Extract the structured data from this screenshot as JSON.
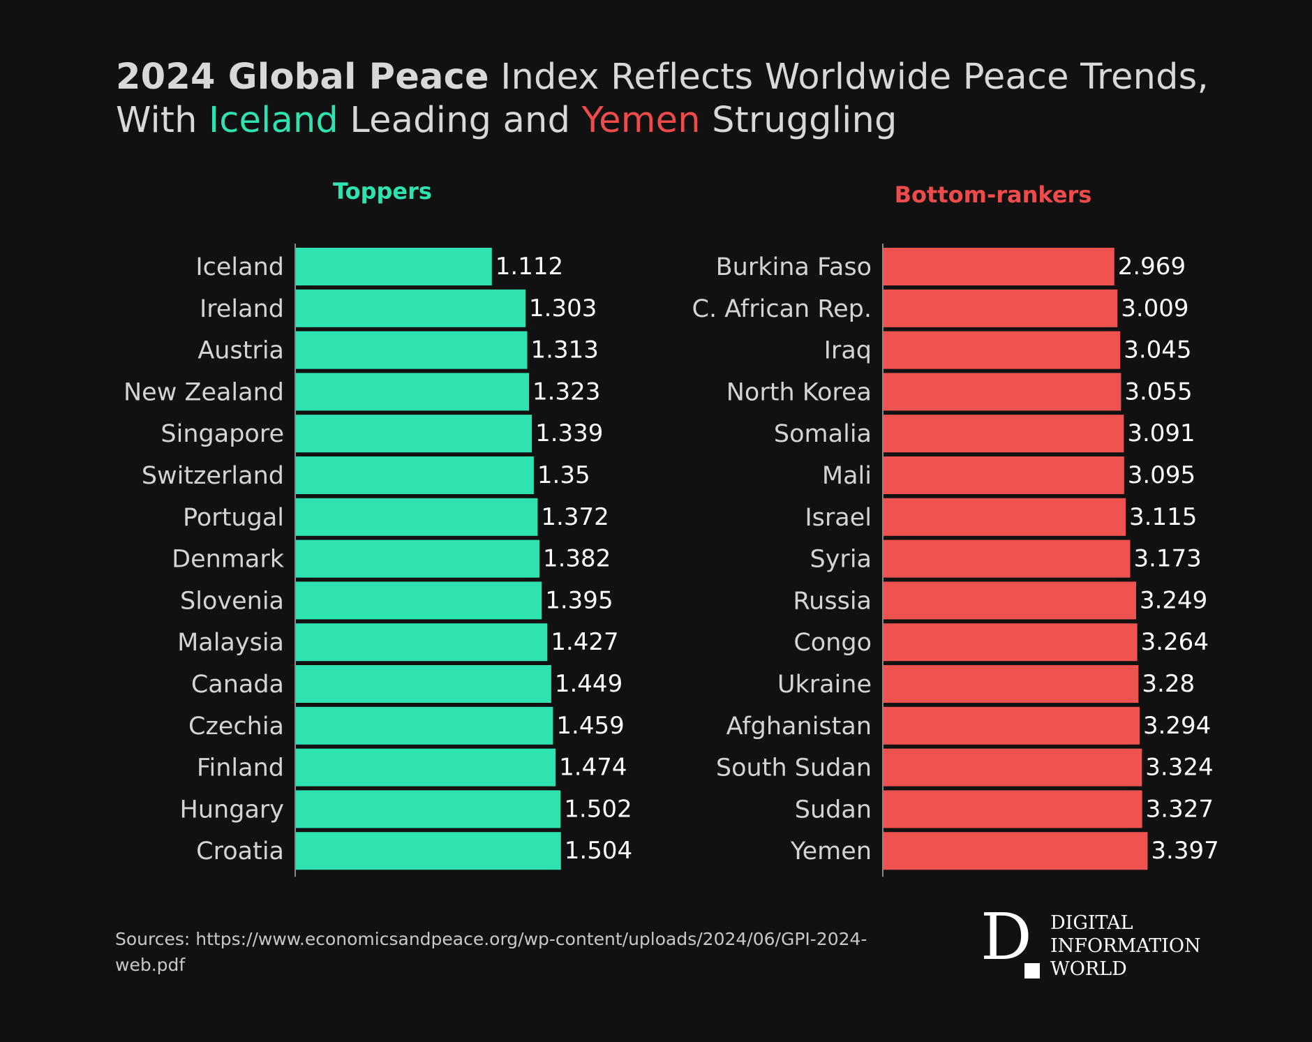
{
  "title": {
    "part1_bold": "2024 Global Peace",
    "part2": " Index Reflects Worldwide Peace Trends, With ",
    "highlight_top": "Iceland",
    "part3": " Leading and ",
    "highlight_bottom": "Yemen",
    "part4": " Struggling"
  },
  "colors": {
    "top_bar": "#2ee3b0",
    "bottom_bar": "#ef5350",
    "top_header": "#2ee3b0",
    "bottom_header": "#ef4b4b"
  },
  "chart_data": [
    {
      "type": "bar",
      "orientation": "horizontal",
      "title": "Toppers",
      "categories": [
        "Iceland",
        "Ireland",
        "Austria",
        "New Zealand",
        "Singapore",
        "Switzerland",
        "Portugal",
        "Denmark",
        "Slovenia",
        "Malaysia",
        "Canada",
        "Czechia",
        "Finland",
        "Hungary",
        "Croatia"
      ],
      "values": [
        1.112,
        1.303,
        1.313,
        1.323,
        1.339,
        1.35,
        1.372,
        1.382,
        1.395,
        1.427,
        1.449,
        1.459,
        1.474,
        1.502,
        1.504
      ],
      "value_labels": [
        "1.112",
        "1.303",
        "1.313",
        "1.323",
        "1.339",
        "1.35",
        "1.372",
        "1.382",
        "1.395",
        "1.427",
        "1.449",
        "1.459",
        "1.474",
        "1.502",
        "1.504"
      ],
      "xlim": [
        0,
        1.6
      ]
    },
    {
      "type": "bar",
      "orientation": "horizontal",
      "title": "Bottom-rankers",
      "categories": [
        "Burkina Faso",
        "C. African Rep.",
        "Iraq",
        "North Korea",
        "Somalia",
        "Mali",
        "Israel",
        "Syria",
        "Russia",
        "Congo",
        "Ukraine",
        "Afghanistan",
        "South Sudan",
        "Sudan",
        "Yemen"
      ],
      "values": [
        2.969,
        3.009,
        3.045,
        3.055,
        3.091,
        3.095,
        3.115,
        3.173,
        3.249,
        3.264,
        3.28,
        3.294,
        3.324,
        3.327,
        3.397
      ],
      "value_labels": [
        "2.969",
        "3.009",
        "3.045",
        "3.055",
        "3.091",
        "3.095",
        "3.115",
        "3.173",
        "3.249",
        "3.264",
        "3.28",
        "3.294",
        "3.324",
        "3.327",
        "3.397"
      ],
      "xlim": [
        0,
        3.6
      ]
    }
  ],
  "source": {
    "text": "Sources: https://www.economicsandpeace.org/wp-content/uploads/2024/06/GPI-2024-web.pdf"
  },
  "logo": {
    "letter": "D",
    "words": [
      "DIGITAL",
      "INFORMATION",
      "WORLD"
    ]
  }
}
